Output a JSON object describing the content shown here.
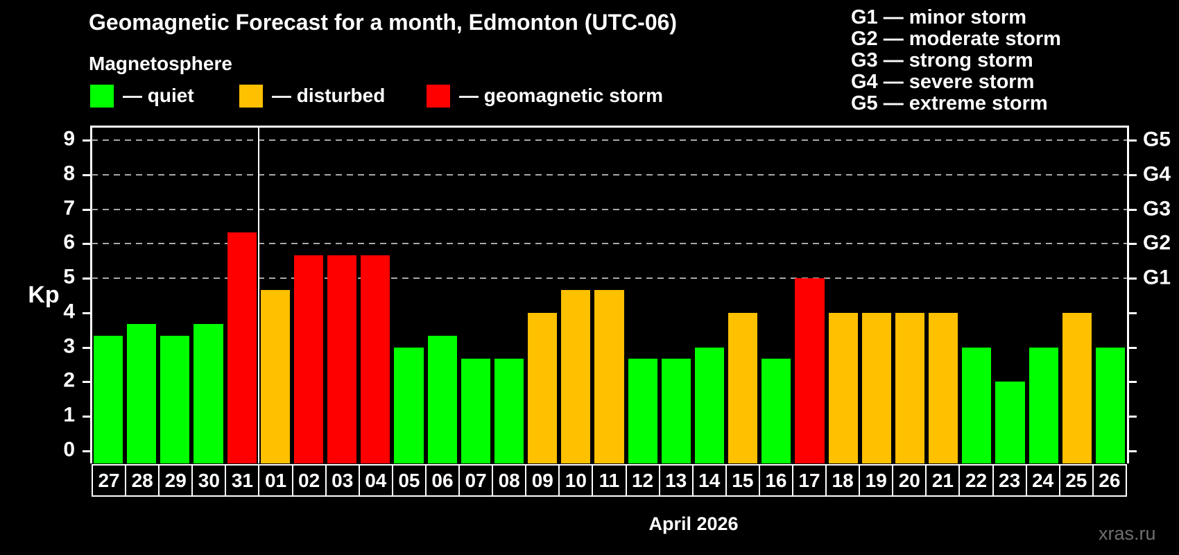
{
  "title": "Geomagnetic Forecast for a month, Edmonton (UTC-06)",
  "subtitle": "Magnetosphere",
  "legend": {
    "items": [
      {
        "key": "quiet",
        "label": "— quiet",
        "color": "#00ff00"
      },
      {
        "key": "disturbed",
        "label": "— disturbed",
        "color": "#ffc000"
      },
      {
        "key": "storm",
        "label": "— geomagnetic storm",
        "color": "#ff0000"
      }
    ]
  },
  "g_legend": {
    "lines": [
      "G1 — minor storm",
      "G2 — moderate storm",
      "G3 — strong storm",
      "G4 — severe storm",
      "G5 — extreme storm"
    ]
  },
  "watermark": "xras.ru",
  "chart_data": {
    "type": "bar",
    "title": "Geomagnetic Forecast for a month, Edmonton (UTC-06)",
    "ylabel": "Kp",
    "xlabel": "April 2026",
    "ylim": [
      0,
      9
    ],
    "yticks": [
      0,
      1,
      2,
      3,
      4,
      5,
      6,
      7,
      8,
      9
    ],
    "gridline_values": [
      5,
      6,
      7,
      8,
      9
    ],
    "right_axis_labels": [
      {
        "value": 5,
        "label": "G1"
      },
      {
        "value": 6,
        "label": "G2"
      },
      {
        "value": 7,
        "label": "G3"
      },
      {
        "value": 8,
        "label": "G4"
      },
      {
        "value": 9,
        "label": "G5"
      }
    ],
    "month_divider_after": "31",
    "categories": [
      "27",
      "28",
      "29",
      "30",
      "31",
      "01",
      "02",
      "03",
      "04",
      "05",
      "06",
      "07",
      "08",
      "09",
      "10",
      "11",
      "12",
      "13",
      "14",
      "15",
      "16",
      "17",
      "18",
      "19",
      "20",
      "21",
      "22",
      "23",
      "24",
      "25",
      "26"
    ],
    "values": [
      3.33,
      3.67,
      3.33,
      3.67,
      6.33,
      4.67,
      5.67,
      5.67,
      5.67,
      3.0,
      3.33,
      2.67,
      2.67,
      4.0,
      4.67,
      4.67,
      2.67,
      2.67,
      3.0,
      4.0,
      2.67,
      5.0,
      4.0,
      4.0,
      4.0,
      4.0,
      3.0,
      2.0,
      3.0,
      4.0,
      3.0
    ],
    "statuses": [
      "quiet",
      "quiet",
      "quiet",
      "quiet",
      "storm",
      "disturbed",
      "storm",
      "storm",
      "storm",
      "quiet",
      "quiet",
      "quiet",
      "quiet",
      "disturbed",
      "disturbed",
      "disturbed",
      "quiet",
      "quiet",
      "quiet",
      "disturbed",
      "quiet",
      "storm",
      "disturbed",
      "disturbed",
      "disturbed",
      "disturbed",
      "quiet",
      "quiet",
      "quiet",
      "disturbed",
      "quiet"
    ],
    "status_colors": {
      "quiet": "#00ff00",
      "disturbed": "#ffc000",
      "storm": "#ff0000"
    }
  }
}
